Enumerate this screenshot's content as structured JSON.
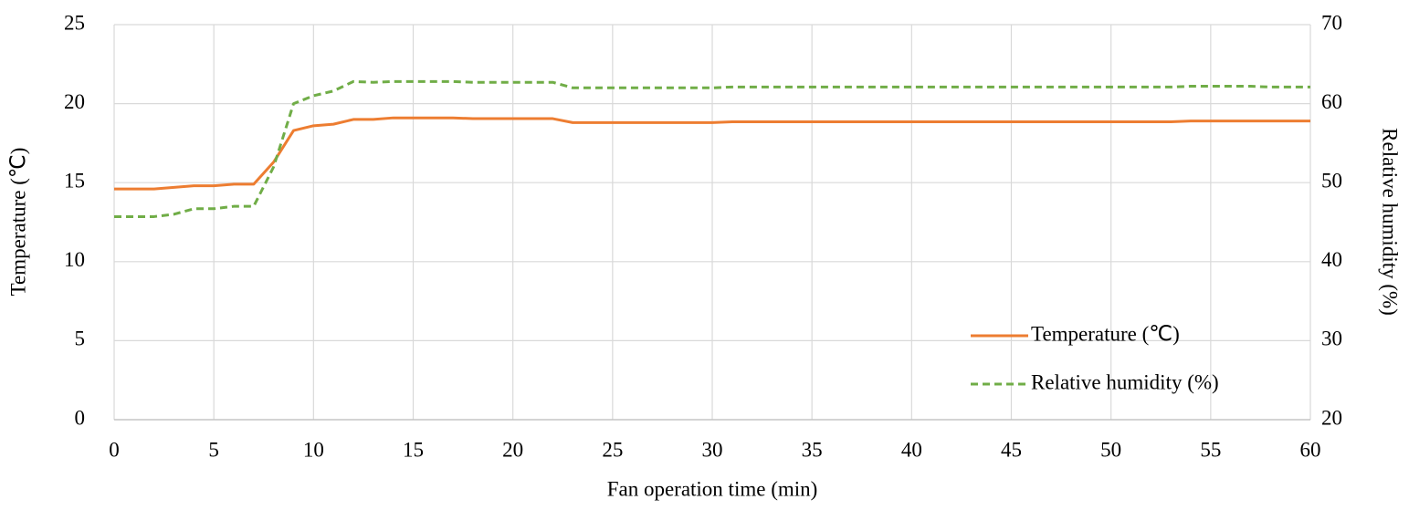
{
  "chart_data": {
    "type": "line",
    "x_label": "Fan operation time (min)",
    "y_label": "Temperature (℃)",
    "y2_label": "Relative humidity (%)",
    "x": [
      0,
      1,
      2,
      3,
      4,
      5,
      6,
      7,
      8,
      9,
      10,
      11,
      12,
      13,
      14,
      15,
      16,
      17,
      18,
      19,
      20,
      21,
      22,
      23,
      24,
      25,
      26,
      27,
      28,
      29,
      30,
      31,
      32,
      33,
      34,
      35,
      36,
      37,
      38,
      39,
      40,
      41,
      42,
      43,
      44,
      45,
      46,
      47,
      48,
      49,
      50,
      51,
      52,
      53,
      54,
      55,
      56,
      57,
      58,
      59,
      60
    ],
    "series": [
      {
        "name": "Temperature (℃)",
        "color": "#ed7d31",
        "dash": false,
        "axis": "y",
        "values": [
          14.6,
          14.6,
          14.6,
          14.7,
          14.8,
          14.8,
          14.9,
          14.9,
          16.3,
          18.3,
          18.6,
          18.7,
          19.0,
          19.0,
          19.1,
          19.1,
          19.1,
          19.1,
          19.05,
          19.05,
          19.05,
          19.05,
          19.05,
          18.8,
          18.8,
          18.8,
          18.8,
          18.8,
          18.8,
          18.8,
          18.8,
          18.85,
          18.85,
          18.85,
          18.85,
          18.85,
          18.85,
          18.85,
          18.85,
          18.85,
          18.85,
          18.85,
          18.85,
          18.85,
          18.85,
          18.85,
          18.85,
          18.85,
          18.85,
          18.85,
          18.85,
          18.85,
          18.85,
          18.85,
          18.9,
          18.9,
          18.9,
          18.9,
          18.9,
          18.9,
          18.9
        ]
      },
      {
        "name": "Relative humidity (%)",
        "color": "#70ad47",
        "dash": true,
        "axis": "y2",
        "values": [
          45.7,
          45.7,
          45.7,
          46.0,
          46.7,
          46.7,
          47.0,
          47.0,
          52.0,
          60.0,
          61.0,
          61.6,
          62.8,
          62.7,
          62.8,
          62.8,
          62.8,
          62.8,
          62.7,
          62.7,
          62.7,
          62.7,
          62.7,
          62.0,
          62.0,
          62.0,
          62.0,
          62.0,
          62.0,
          62.0,
          62.0,
          62.1,
          62.1,
          62.1,
          62.1,
          62.1,
          62.1,
          62.1,
          62.1,
          62.1,
          62.1,
          62.1,
          62.1,
          62.1,
          62.1,
          62.1,
          62.1,
          62.1,
          62.1,
          62.1,
          62.1,
          62.1,
          62.1,
          62.1,
          62.2,
          62.2,
          62.2,
          62.2,
          62.1,
          62.1,
          62.1
        ]
      }
    ],
    "xlim": [
      0,
      60
    ],
    "xticks": [
      0,
      5,
      10,
      15,
      20,
      25,
      30,
      35,
      40,
      45,
      50,
      55,
      60
    ],
    "ylim": [
      0,
      25
    ],
    "yticks": [
      0,
      5,
      10,
      15,
      20,
      25
    ],
    "y2lim": [
      20,
      70
    ],
    "y2ticks": [
      20,
      30,
      40,
      50,
      60,
      70
    ],
    "grid": true,
    "legend": "lower right"
  }
}
